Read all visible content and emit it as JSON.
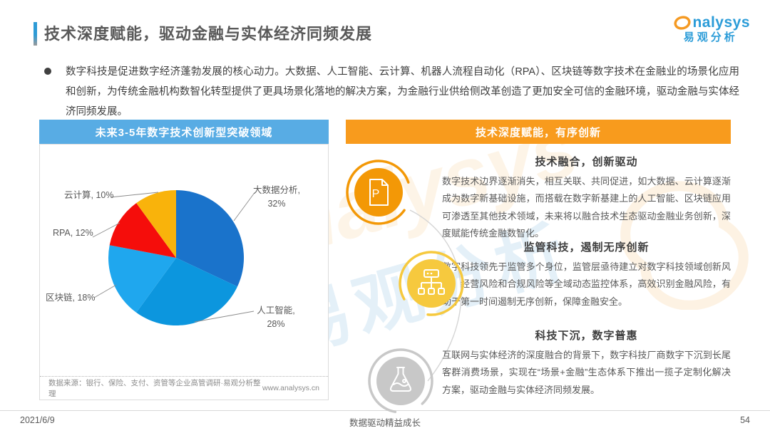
{
  "page": {
    "title": "技术深度赋能，驱动金融与实体经济同频发展",
    "bullet": "数字科技是促进数字经济蓬勃发展的核心动力。大数据、人工智能、云计算、机器人流程自动化（RPA）、区块链等数字技术在金融业的场景化应用和创新，为传统金融机构数智化转型提供了更具场景化落地的解决方案，为金融行业供给侧改革创造了更加安全可信的金融环境，驱动金融与实体经济同频发展。",
    "footer": {
      "date": "2021/6/9",
      "slogan": "数据驱动精益成长",
      "page_number": "54"
    }
  },
  "logo": {
    "brand": "analysys",
    "wordmark_text": "nalysys",
    "brand_cn": "易观分析"
  },
  "left_panel": {
    "header": "未来3-5年数字技术创新型突破领域",
    "source": "数据来源：银行、保险、支付、资管等企业高管调研·易观分析整理",
    "website": "www.analysys.cn"
  },
  "right_panel": {
    "header": "技术深度赋能，有序创新",
    "blocks": [
      {
        "icon": "document-p-icon",
        "title": "技术融合，创新驱动",
        "body": "数字技术边界逐渐消失，相互关联、共同促进，如大数据、云计算逐渐成为数字新基础设施，而搭载在数字新基建上的人工智能、区块链应用可渗透至其他技术领域，未来将以融合技术生态驱动金融业务创新，深度赋能传统金融数智化。"
      },
      {
        "icon": "hierarchy-icon",
        "title": "监管科技，遏制无序创新",
        "body": "数字科技领先于监管多个身位，监管层亟待建立对数字科技领域创新风险、经营风险和合规风险等全域动态监控体系，高效识别金融风险，有助于第一时间遏制无序创新，保障金融安全。"
      },
      {
        "icon": "flask-icon",
        "title": "科技下沉，数字普惠",
        "body": "互联网与实体经济的深度融合的背景下，数字科技厂商数字下沉到长尾客群消费场景，实现在“场景+金融”生态体系下推出一揽子定制化解决方案，驱动金融与实体经济同频发展。"
      }
    ]
  },
  "chart_data": {
    "type": "pie",
    "title": "未来3-5年数字技术创新型突破领域",
    "labels": [
      "大数据分析",
      "人工智能",
      "区块链",
      "RPA",
      "云计算"
    ],
    "values": [
      32,
      28,
      18,
      12,
      10
    ],
    "unit": "%",
    "colors": [
      "#1a73cb",
      "#0c96de",
      "#1fa7ee",
      "#f50d0b",
      "#f9b30b"
    ],
    "start_angle_deg": 0,
    "direction": "clockwise",
    "legend": "none",
    "label_style": "outside-with-leader-lines"
  },
  "colors": {
    "left_header_bg": "#58ace4",
    "right_header_bg": "#f89b1d",
    "icon1_fill": "#f39806",
    "icon2_fill": "#f6c93e",
    "icon3_fill": "#c8c8c8",
    "logo_blue": "#2b9cd8",
    "logo_orange": "#f59a23"
  }
}
